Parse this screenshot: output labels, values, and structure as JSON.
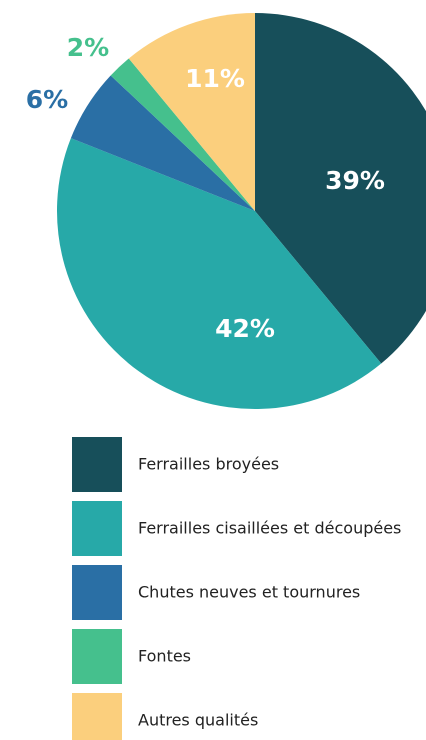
{
  "chart_data": {
    "type": "pie",
    "categories": [
      "Ferrailles broyées",
      "Ferrailles cisaillées et découpées",
      "Chutes neuves et tournures",
      "Fontes",
      "Autres qualités"
    ],
    "values": [
      39,
      42,
      6,
      2,
      11
    ],
    "value_labels": [
      "39%",
      "42%",
      "6%",
      "2%",
      "11%"
    ],
    "colors": [
      "#174f5a",
      "#27a9a8",
      "#2a6fa5",
      "#45c08d",
      "#fbcf7d"
    ]
  }
}
